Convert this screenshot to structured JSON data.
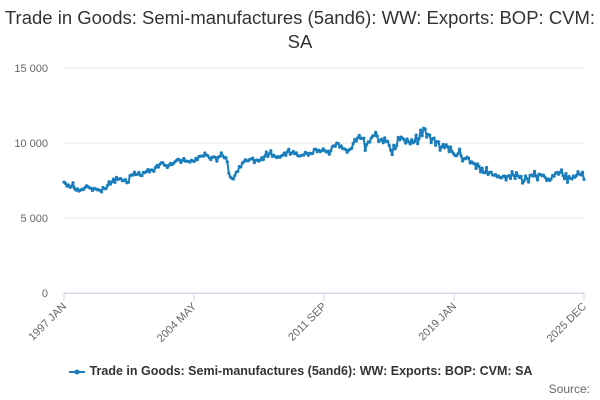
{
  "chart_data": {
    "type": "line",
    "title": "Trade in Goods: Semi-manufactures (5and6): WW: Exports: BOP: CVM: SA",
    "xlabel": "",
    "ylabel": "",
    "ylim": [
      0,
      15000
    ],
    "y_ticks": [
      "0",
      "5 000",
      "10 000",
      "15 000"
    ],
    "x_ticks": [
      "1997 JAN",
      "2004 MAY",
      "2011 SEP",
      "2019 JAN",
      "2025 DEC"
    ],
    "x_range": [
      "1997-01",
      "2025-12"
    ],
    "grid": true,
    "legend": "bottom",
    "series": [
      {
        "name": "Trade in Goods: Semi-manufactures (5and6): WW: Exports: BOP: CVM: SA",
        "color": "#1a7ebd",
        "sampling": "quarterly",
        "values": [
          7350,
          7050,
          7150,
          6900,
          6950,
          7000,
          6850,
          6800,
          6900,
          7050,
          7200,
          7400,
          7550,
          7650,
          7500,
          7850,
          7950,
          7850,
          8150,
          8300,
          8200,
          8450,
          8600,
          8550,
          8700,
          8800,
          8750,
          8850,
          8900,
          8950,
          9050,
          9100,
          9100,
          9200,
          9050,
          9150,
          8900,
          7600,
          7900,
          8350,
          8600,
          8800,
          8900,
          8950,
          9050,
          9150,
          9250,
          9050,
          9150,
          9300,
          9350,
          9250,
          9150,
          9300,
          9400,
          9200,
          9400,
          9500,
          9650,
          9450,
          9700,
          9850,
          9750,
          9550,
          9800,
          10100,
          10350,
          9900,
          10300,
          10550,
          10150,
          9950,
          10250,
          9550,
          10050,
          10300,
          9950,
          10100,
          10450,
          10350,
          10600,
          10400,
          10150,
          10100,
          9750,
          9450,
          9500,
          9350,
          9550,
          9050,
          8850,
          8550,
          8650,
          8300,
          8100,
          7750
        ]
      }
    ]
  },
  "credits": "Source:"
}
